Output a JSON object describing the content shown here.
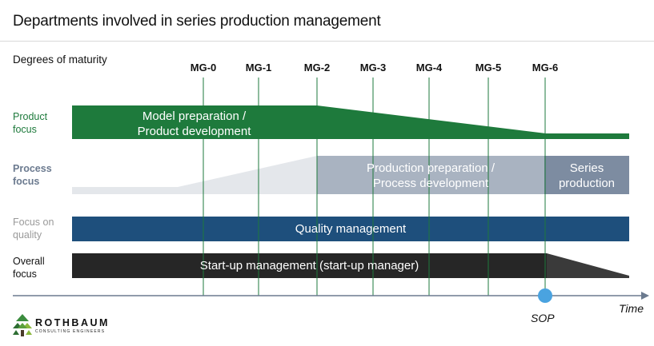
{
  "title": "Departments involved in series production management",
  "maturity_label": "Degrees of maturity",
  "milestones": [
    "MG-0",
    "MG-1",
    "MG-2",
    "MG-3",
    "MG-4",
    "MG-5",
    "MG-6"
  ],
  "rows": {
    "product": {
      "label_line1": "Product",
      "label_line2": "focus",
      "bar_line1": "Model preparation /",
      "bar_line2": "Product development",
      "color": "#1e7a3c"
    },
    "process": {
      "label_line1": "Process",
      "label_line2": "focus",
      "bar_line1": "Production preparation /",
      "bar_line2": "Process development",
      "series_line1": "Series",
      "series_line2": "production",
      "color": "#7d8ca1",
      "light_color": "#a9b3c1",
      "pale_color": "#e4e7eb"
    },
    "quality": {
      "label_line1": "Focus on",
      "label_line2": "quality",
      "bar_text": "Quality management",
      "color": "#1e4f7c"
    },
    "overall": {
      "label_line1": "Overall",
      "label_line2": "focus",
      "bar_text": "Start-up management (start-up manager)",
      "color": "#262626"
    }
  },
  "axis": {
    "time_label": "Time",
    "sop_label": "SOP",
    "sop_color": "#4aa3e0"
  },
  "logo": {
    "name": "ROTHBAUM",
    "subtitle": "CONSULTING ENGINEERS",
    "icon": "tree-logo-icon"
  }
}
